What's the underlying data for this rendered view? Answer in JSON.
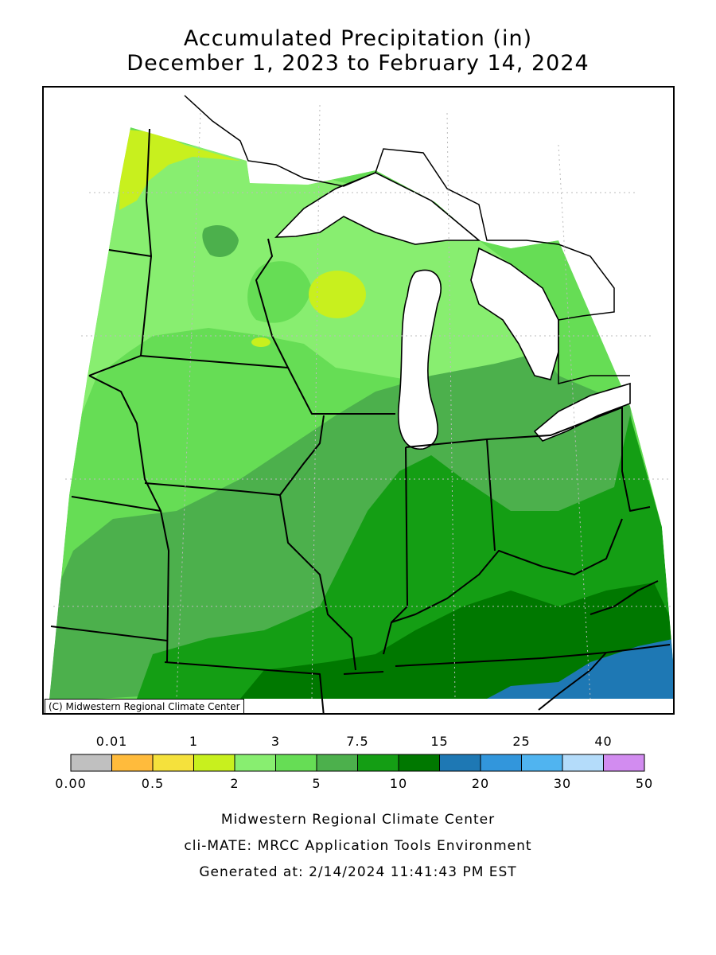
{
  "title": {
    "line1": "Accumulated Precipitation (in)",
    "line2": "December 1, 2023 to February 14, 2024"
  },
  "map": {
    "credit": "(C) Midwestern Regional Climate Center"
  },
  "legend": {
    "upper_labels": [
      "0.01",
      "1",
      "3",
      "7.5",
      "15",
      "25",
      "40"
    ],
    "lower_labels": [
      "0.00",
      "0.5",
      "2",
      "5",
      "10",
      "20",
      "30",
      "50"
    ],
    "colors": [
      "#c0c0c0",
      "#ffbb3c",
      "#f5e13c",
      "#c8f01e",
      "#88ee70",
      "#66dd55",
      "#4cb04c",
      "#149e14",
      "#007800",
      "#1e78b4",
      "#3296dc",
      "#50b4f0",
      "#b4dcfa",
      "#d28cf0"
    ]
  },
  "footer": {
    "line1": "Midwestern Regional Climate Center",
    "line2": "cli-MATE: MRCC Application Tools Environment",
    "line3": "Generated at: 2/14/2024 11:41:43 PM EST"
  }
}
